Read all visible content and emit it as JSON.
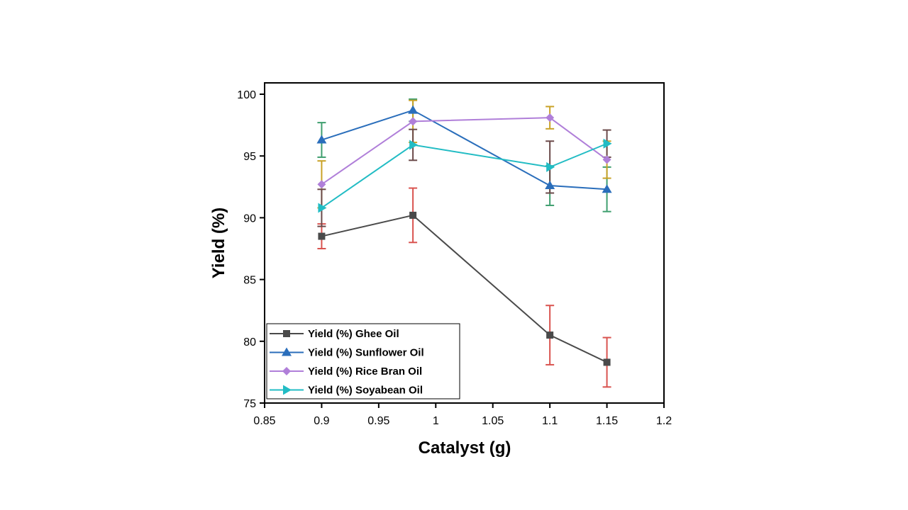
{
  "chart_data": {
    "type": "line",
    "title": "",
    "xlabel": "Catalyst (g)",
    "ylabel": "Yield (%)",
    "xlim": [
      0.85,
      1.2
    ],
    "ylim": [
      75,
      100
    ],
    "xticks": [
      "0.85",
      "0.9",
      "0.95",
      "1",
      "1.05",
      "1.1",
      "1.15",
      "1.2"
    ],
    "yticks": [
      "75",
      "80",
      "85",
      "90",
      "95",
      "100"
    ],
    "grid": false,
    "legend_position": "bottom-left",
    "x": [
      0.9,
      0.98,
      1.1,
      1.15
    ],
    "series": [
      {
        "name": "Yield (%) Ghee Oil",
        "marker": "square",
        "color": "#4a4a4a",
        "error_color": "#d9534f",
        "values": [
          88.5,
          90.2,
          80.5,
          78.3
        ],
        "errors": [
          1.0,
          2.2,
          2.4,
          2.0
        ]
      },
      {
        "name": "Yield (%) Sunflower Oil",
        "marker": "triangle-up",
        "color": "#2a6ebb",
        "error_color": "#3f9f6f",
        "values": [
          96.3,
          98.7,
          92.6,
          92.3
        ],
        "errors": [
          1.4,
          0.9,
          1.6,
          1.8
        ]
      },
      {
        "name": "Yield (%) Rice Bran Oil",
        "marker": "diamond",
        "color": "#b07fd9",
        "error_color": "#c9a227",
        "values": [
          92.7,
          97.8,
          98.1,
          94.7
        ],
        "errors": [
          1.9,
          1.7,
          0.9,
          1.5
        ]
      },
      {
        "name": "Yield (%) Soyabean Oil",
        "marker": "triangle-right",
        "color": "#22bcc4",
        "error_color": "#6b4a4a",
        "values": [
          90.8,
          95.9,
          94.1,
          96.0
        ],
        "errors": [
          1.5,
          1.25,
          2.1,
          1.1
        ]
      }
    ]
  }
}
